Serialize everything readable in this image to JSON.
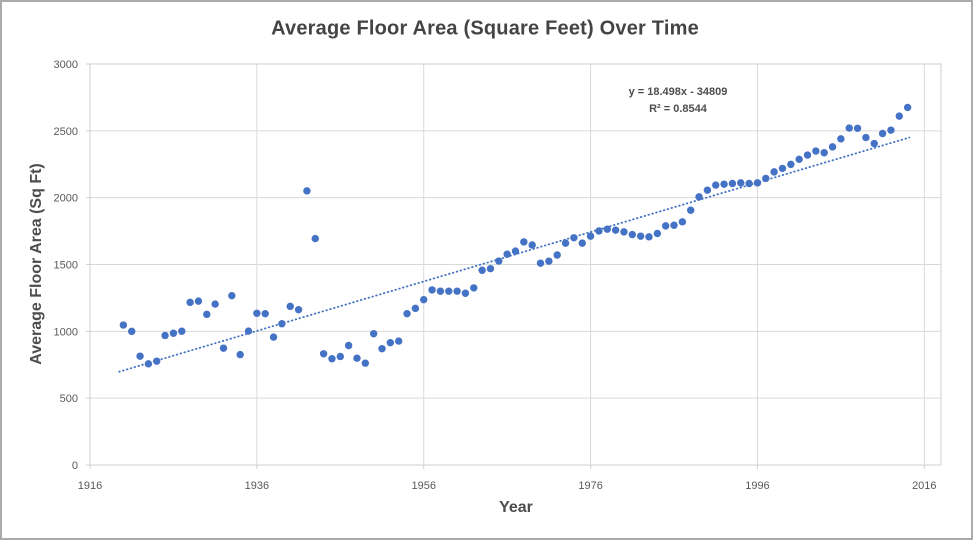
{
  "chart_data": {
    "type": "scatter",
    "title": "Average Floor Area (Square Feet) Over Time",
    "xlabel": "Year",
    "ylabel": "Average Floor Area (Sq Ft)",
    "xlim": [
      1916,
      2018
    ],
    "ylim": [
      0,
      3000
    ],
    "x_ticks": [
      1916,
      1936,
      1956,
      1976,
      1996,
      2016
    ],
    "y_ticks": [
      0,
      500,
      1000,
      1500,
      2000,
      2500,
      3000
    ],
    "grid": true,
    "legend": "none",
    "marker_color": "#4472c4",
    "gridline_color": "#d9d9d9",
    "axis_color": "#cfcfcf",
    "tick_label_color": "#595959",
    "trendline": {
      "equation_line1": "y = 18.498x - 34809",
      "equation_line2": "R² = 0.8544",
      "slope": 18.498,
      "intercept": -34809,
      "x_start": 1919.5,
      "x_end": 2014.2,
      "color": "#4472c4",
      "style": "dotted"
    },
    "series": [
      {
        "name": "Average Floor Area (Sq Ft)",
        "points": [
          [
            1920,
            1047
          ],
          [
            1921,
            1000
          ],
          [
            1922,
            814
          ],
          [
            1923,
            757
          ],
          [
            1924,
            777
          ],
          [
            1925,
            969
          ],
          [
            1926,
            986
          ],
          [
            1927,
            1001
          ],
          [
            1928,
            1217
          ],
          [
            1929,
            1226
          ],
          [
            1930,
            1127
          ],
          [
            1931,
            1204
          ],
          [
            1932,
            874
          ],
          [
            1933,
            1267
          ],
          [
            1934,
            826
          ],
          [
            1935,
            1002
          ],
          [
            1936,
            1135
          ],
          [
            1937,
            1132
          ],
          [
            1938,
            957
          ],
          [
            1939,
            1057
          ],
          [
            1940,
            1187
          ],
          [
            1941,
            1162
          ],
          [
            1942,
            2051
          ],
          [
            1943,
            1694
          ],
          [
            1944,
            832
          ],
          [
            1945,
            795
          ],
          [
            1946,
            812
          ],
          [
            1947,
            894
          ],
          [
            1948,
            799
          ],
          [
            1949,
            762
          ],
          [
            1950,
            982
          ],
          [
            1951,
            870
          ],
          [
            1952,
            915
          ],
          [
            1953,
            927
          ],
          [
            1954,
            1132
          ],
          [
            1955,
            1172
          ],
          [
            1956,
            1237
          ],
          [
            1957,
            1310
          ],
          [
            1958,
            1300
          ],
          [
            1959,
            1300
          ],
          [
            1960,
            1300
          ],
          [
            1961,
            1285
          ],
          [
            1962,
            1325
          ],
          [
            1963,
            1457
          ],
          [
            1964,
            1469
          ],
          [
            1965,
            1526
          ],
          [
            1966,
            1577
          ],
          [
            1967,
            1600
          ],
          [
            1968,
            1669
          ],
          [
            1969,
            1646
          ],
          [
            1970,
            1510
          ],
          [
            1971,
            1525
          ],
          [
            1972,
            1571
          ],
          [
            1973,
            1660
          ],
          [
            1974,
            1700
          ],
          [
            1975,
            1660
          ],
          [
            1976,
            1712
          ],
          [
            1977,
            1751
          ],
          [
            1978,
            1764
          ],
          [
            1979,
            1757
          ],
          [
            1980,
            1744
          ],
          [
            1981,
            1724
          ],
          [
            1982,
            1712
          ],
          [
            1983,
            1707
          ],
          [
            1984,
            1732
          ],
          [
            1985,
            1789
          ],
          [
            1986,
            1794
          ],
          [
            1987,
            1819
          ],
          [
            1988,
            1906
          ],
          [
            1989,
            2006
          ],
          [
            1990,
            2056
          ],
          [
            1991,
            2094
          ],
          [
            1992,
            2101
          ],
          [
            1993,
            2106
          ],
          [
            1994,
            2111
          ],
          [
            1995,
            2106
          ],
          [
            1996,
            2111
          ],
          [
            1997,
            2144
          ],
          [
            1998,
            2193
          ],
          [
            1999,
            2219
          ],
          [
            2000,
            2249
          ],
          [
            2001,
            2287
          ],
          [
            2002,
            2319
          ],
          [
            2003,
            2349
          ],
          [
            2004,
            2336
          ],
          [
            2005,
            2380
          ],
          [
            2006,
            2440
          ],
          [
            2007,
            2521
          ],
          [
            2008,
            2519
          ],
          [
            2009,
            2450
          ],
          [
            2010,
            2405
          ],
          [
            2011,
            2480
          ],
          [
            2012,
            2505
          ],
          [
            2013,
            2610
          ],
          [
            2014,
            2675
          ]
        ]
      }
    ]
  }
}
